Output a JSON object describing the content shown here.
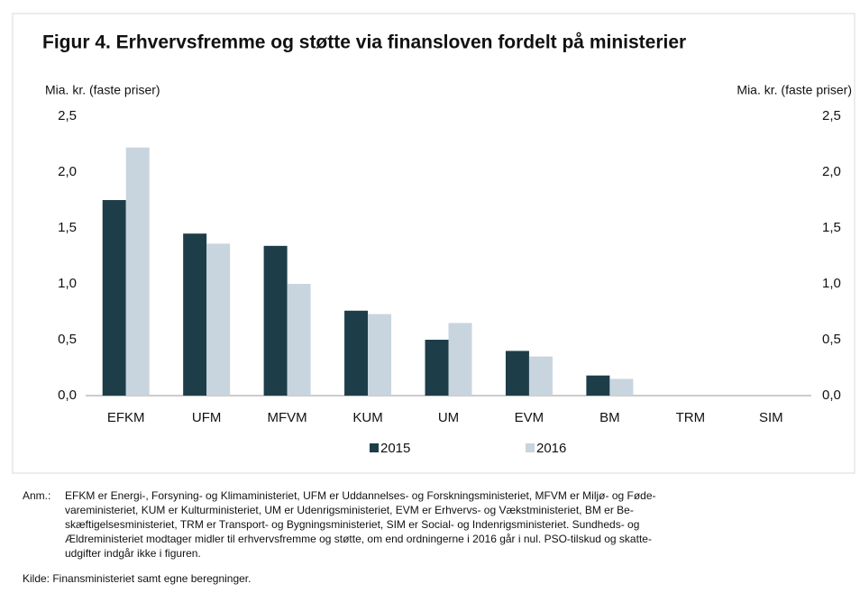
{
  "chart_data": {
    "type": "bar",
    "title": "Figur 4. Erhvervsfremme og støtte via finansloven fordelt på ministerier",
    "y_label": "Mia. kr. (faste priser)",
    "y2_label": "Mia. kr. (faste priser)",
    "categories": [
      "EFKM",
      "UFM",
      "MFVM",
      "KUM",
      "UM",
      "EVM",
      "BM",
      "TRM",
      "SIM"
    ],
    "series": [
      {
        "name": "2015",
        "color": "#1d3d49",
        "values": [
          1.75,
          1.45,
          1.34,
          0.76,
          0.5,
          0.4,
          0.18,
          0,
          0
        ]
      },
      {
        "name": "2016",
        "color": "#c8d5de",
        "values": [
          2.22,
          1.36,
          1.0,
          0.73,
          0.65,
          0.35,
          0.15,
          0,
          0
        ]
      }
    ],
    "ylim": [
      0,
      2.5
    ],
    "yticks": [
      {
        "value": 0,
        "label": "0,0"
      },
      {
        "value": 0.5,
        "label": "0,5"
      },
      {
        "value": 1,
        "label": "1,0"
      },
      {
        "value": 1.5,
        "label": "1,5"
      },
      {
        "value": 2,
        "label": "2,0"
      },
      {
        "value": 2.5,
        "label": "2,5"
      }
    ],
    "y2lim": [
      0,
      2.5
    ],
    "y2ticks": [
      {
        "value": 0,
        "label": "0,0"
      },
      {
        "value": 0.5,
        "label": "0,5"
      },
      {
        "value": 1,
        "label": "1,0"
      },
      {
        "value": 1.5,
        "label": "1,5"
      },
      {
        "value": 2,
        "label": "2,0"
      },
      {
        "value": 2.5,
        "label": "2,5"
      }
    ],
    "grid": false,
    "legend": "bottom",
    "note_label": "Anm.:",
    "note_lines": [
      "EFKM er Energi-, Forsyning- og Klimaministeriet, UFM er Uddannelses- og Forskningsministeriet, MFVM er Miljø- og Føde-",
      "vareministeriet, KUM er Kulturministeriet, UM er Udenrigsministeriet, EVM er Erhvervs- og Vækstministeriet, BM er Be-",
      "skæftigelsesministeriet, TRM er Transport- og Bygningsministeriet, SIM er Social- og Indenrigsministeriet. Sundheds- og",
      "Ældreministeriet modtager midler til erhvervsfremme og støtte, om end ordningerne i 2016 går i nul. PSO-tilskud og skatte-",
      "udgifter indgår ikke i figuren."
    ],
    "source": "Kilde: Finansministeriet samt egne beregninger."
  }
}
